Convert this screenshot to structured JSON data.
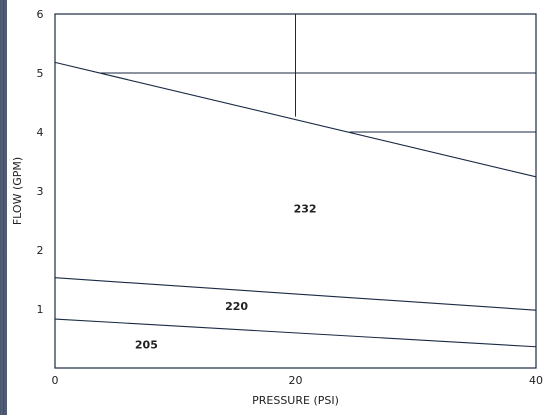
{
  "chart_data": {
    "type": "line",
    "xlabel": "PRESSURE (PSI)",
    "ylabel": "FLOW (GPM)",
    "xlim": [
      0,
      40
    ],
    "ylim": [
      0,
      6
    ],
    "xticks": [
      0,
      20,
      40
    ],
    "yticks": [
      1,
      2,
      3,
      4,
      5,
      6
    ],
    "grid": false,
    "series": [
      {
        "name": "205",
        "x": [
          0,
          40
        ],
        "y": [
          0.83,
          0.36
        ]
      },
      {
        "name": "220",
        "x": [
          0,
          40
        ],
        "y": [
          1.53,
          0.98
        ]
      },
      {
        "name": "232",
        "x": [
          0,
          40
        ],
        "y": [
          5.18,
          3.24
        ]
      }
    ],
    "labels": [
      {
        "text": "205",
        "x": 7.6,
        "y": 0.4
      },
      {
        "text": "220",
        "x": 15.1,
        "y": 1.05
      },
      {
        "text": "232",
        "x": 20.8,
        "y": 2.7
      }
    ],
    "reference_lines": [
      {
        "x1": 3.7,
        "y1": 5.0,
        "x2": 40,
        "y2": 5.0
      },
      {
        "x1": 24.5,
        "y1": 4.0,
        "x2": 40,
        "y2": 4.0
      },
      {
        "x1": 20,
        "y1": 4.26,
        "x2": 20,
        "y2": 6.0
      }
    ],
    "colors": {
      "line": "#1a2a44",
      "frame": "#1a2a44",
      "background": "#ffffff"
    }
  }
}
